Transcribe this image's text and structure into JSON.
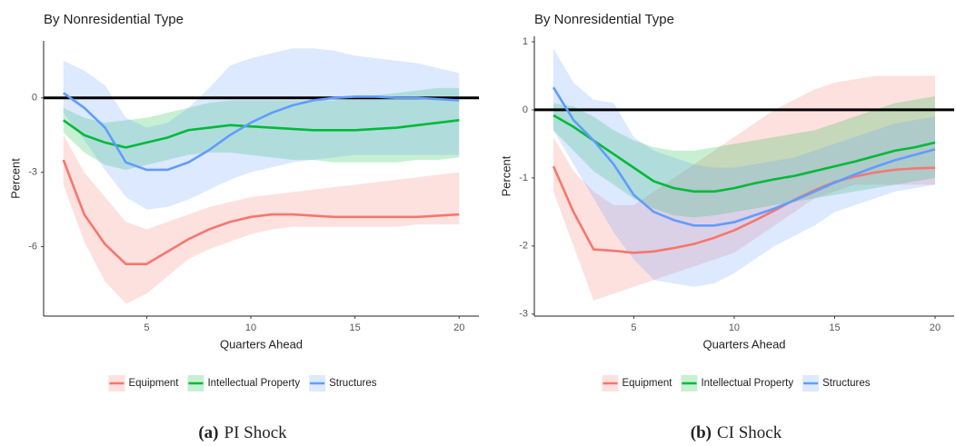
{
  "chart_data": [
    {
      "type": "line",
      "title": "By Nonresidential Type",
      "xlabel": "Quarters Ahead",
      "ylabel": "Percent",
      "caption_label": "(a)",
      "caption": "PI Shock",
      "x": [
        1,
        2,
        3,
        4,
        5,
        6,
        7,
        8,
        9,
        10,
        11,
        12,
        13,
        14,
        15,
        16,
        17,
        18,
        19,
        20
      ],
      "xlim": [
        0.05,
        20.95
      ],
      "xticks": [
        5,
        10,
        15,
        20
      ],
      "ylim": [
        -8.8,
        2.3
      ],
      "yticks": [
        -6,
        -3,
        0
      ],
      "hline": 0,
      "legend": "bottom",
      "series": [
        {
          "name": "Equipment",
          "color": "#F8766D",
          "values": [
            -2.5,
            -4.7,
            -5.9,
            -6.7,
            -6.7,
            -6.2,
            -5.7,
            -5.3,
            -5.0,
            -4.8,
            -4.7,
            -4.7,
            -4.75,
            -4.8,
            -4.8,
            -4.8,
            -4.8,
            -4.8,
            -4.75,
            -4.7
          ],
          "lower": [
            -3.5,
            -5.8,
            -7.4,
            -8.3,
            -7.9,
            -7.2,
            -6.5,
            -6.1,
            -5.8,
            -5.5,
            -5.3,
            -5.2,
            -5.2,
            -5.2,
            -5.2,
            -5.2,
            -5.2,
            -5.1,
            -5.1,
            -5.1
          ],
          "upper": [
            -1.5,
            -3.0,
            -4.0,
            -5.0,
            -5.3,
            -5.0,
            -4.7,
            -4.4,
            -4.2,
            -4.0,
            -3.9,
            -3.8,
            -3.7,
            -3.6,
            -3.5,
            -3.4,
            -3.3,
            -3.2,
            -3.1,
            -3.0
          ]
        },
        {
          "name": "Intellectual Property",
          "color": "#00BA38",
          "values": [
            -0.9,
            -1.5,
            -1.8,
            -2.0,
            -1.8,
            -1.6,
            -1.3,
            -1.2,
            -1.1,
            -1.15,
            -1.2,
            -1.25,
            -1.3,
            -1.3,
            -1.3,
            -1.25,
            -1.2,
            -1.1,
            -1.0,
            -0.9
          ],
          "lower": [
            -1.4,
            -2.2,
            -2.7,
            -2.9,
            -2.7,
            -2.5,
            -2.3,
            -2.2,
            -2.2,
            -2.3,
            -2.4,
            -2.5,
            -2.5,
            -2.6,
            -2.6,
            -2.6,
            -2.6,
            -2.5,
            -2.5,
            -2.4
          ],
          "upper": [
            -0.4,
            -0.8,
            -1.0,
            -0.9,
            -0.8,
            -0.6,
            -0.4,
            -0.2,
            -0.1,
            -0.1,
            -0.1,
            -0.1,
            -0.1,
            -0.1,
            0.0,
            0.1,
            0.2,
            0.3,
            0.4,
            0.4
          ]
        },
        {
          "name": "Structures",
          "color": "#619CFF",
          "values": [
            0.2,
            -0.4,
            -1.2,
            -2.6,
            -2.9,
            -2.9,
            -2.6,
            -2.1,
            -1.5,
            -1.0,
            -0.6,
            -0.3,
            -0.1,
            0.0,
            0.05,
            0.05,
            0.0,
            0.0,
            -0.05,
            -0.1
          ],
          "lower": [
            -0.6,
            -1.7,
            -2.9,
            -4.0,
            -4.5,
            -4.4,
            -4.1,
            -3.7,
            -3.3,
            -3.0,
            -2.8,
            -2.6,
            -2.5,
            -2.4,
            -2.3,
            -2.3,
            -2.3,
            -2.3,
            -2.3,
            -2.3
          ],
          "upper": [
            1.5,
            1.1,
            0.5,
            -0.8,
            -1.2,
            -1.0,
            -0.4,
            0.4,
            1.3,
            1.6,
            1.8,
            2.0,
            2.0,
            1.9,
            1.7,
            1.6,
            1.5,
            1.4,
            1.2,
            1.0
          ]
        }
      ]
    },
    {
      "type": "line",
      "title": "By Nonresidential Type",
      "xlabel": "Quarters Ahead",
      "ylabel": "Percent",
      "caption_label": "(b)",
      "caption": "CI Shock",
      "x": [
        1,
        2,
        3,
        4,
        5,
        6,
        7,
        8,
        9,
        10,
        11,
        12,
        13,
        14,
        15,
        16,
        17,
        18,
        19,
        20
      ],
      "xlim": [
        0.05,
        20.95
      ],
      "xticks": [
        5,
        10,
        15,
        20
      ],
      "ylim": [
        -3.03,
        1.08
      ],
      "yticks": [
        -3,
        -2,
        -1,
        0,
        1
      ],
      "hline": 0,
      "legend": "bottom",
      "series": [
        {
          "name": "Equipment",
          "color": "#F8766D",
          "values": [
            -0.83,
            -1.5,
            -2.05,
            -2.07,
            -2.1,
            -2.08,
            -2.03,
            -1.97,
            -1.88,
            -1.77,
            -1.63,
            -1.48,
            -1.32,
            -1.18,
            -1.06,
            -0.98,
            -0.92,
            -0.88,
            -0.86,
            -0.85
          ],
          "lower": [
            -1.2,
            -2.0,
            -2.8,
            -2.7,
            -2.6,
            -2.5,
            -2.4,
            -2.3,
            -2.2,
            -2.1,
            -1.9,
            -1.7,
            -1.5,
            -1.3,
            -1.2,
            -1.1,
            -1.1,
            -1.1,
            -1.1,
            -1.1
          ],
          "upper": [
            -0.4,
            -0.9,
            -1.2,
            -1.4,
            -1.4,
            -1.2,
            -1.0,
            -0.8,
            -0.6,
            -0.4,
            -0.2,
            0.0,
            0.15,
            0.3,
            0.4,
            0.45,
            0.5,
            0.5,
            0.5,
            0.5
          ]
        },
        {
          "name": "Intellectual Property",
          "color": "#00BA38",
          "values": [
            -0.08,
            -0.25,
            -0.45,
            -0.65,
            -0.85,
            -1.05,
            -1.15,
            -1.2,
            -1.2,
            -1.15,
            -1.08,
            -1.02,
            -0.97,
            -0.9,
            -0.83,
            -0.76,
            -0.68,
            -0.6,
            -0.55,
            -0.48
          ],
          "lower": [
            -0.3,
            -0.6,
            -0.9,
            -1.1,
            -1.3,
            -1.45,
            -1.55,
            -1.58,
            -1.55,
            -1.5,
            -1.45,
            -1.4,
            -1.35,
            -1.3,
            -1.25,
            -1.2,
            -1.15,
            -1.1,
            -1.05,
            -1.0
          ],
          "upper": [
            0.1,
            0.05,
            -0.1,
            -0.3,
            -0.45,
            -0.55,
            -0.6,
            -0.6,
            -0.55,
            -0.5,
            -0.45,
            -0.4,
            -0.35,
            -0.3,
            -0.2,
            -0.1,
            0.0,
            0.1,
            0.15,
            0.2
          ]
        },
        {
          "name": "Structures",
          "color": "#619CFF",
          "values": [
            0.33,
            -0.15,
            -0.45,
            -0.8,
            -1.25,
            -1.5,
            -1.62,
            -1.7,
            -1.7,
            -1.65,
            -1.55,
            -1.45,
            -1.33,
            -1.2,
            -1.07,
            -0.95,
            -0.84,
            -0.74,
            -0.66,
            -0.58
          ],
          "lower": [
            -0.3,
            -0.8,
            -1.3,
            -1.8,
            -2.2,
            -2.5,
            -2.55,
            -2.6,
            -2.55,
            -2.4,
            -2.2,
            -2.0,
            -1.85,
            -1.7,
            -1.5,
            -1.4,
            -1.3,
            -1.2,
            -1.15,
            -1.1
          ],
          "upper": [
            0.9,
            0.4,
            0.15,
            0.1,
            -0.4,
            -0.6,
            -0.7,
            -0.8,
            -0.85,
            -0.85,
            -0.8,
            -0.75,
            -0.7,
            -0.6,
            -0.5,
            -0.4,
            -0.3,
            -0.2,
            -0.15,
            -0.1
          ]
        }
      ]
    }
  ]
}
